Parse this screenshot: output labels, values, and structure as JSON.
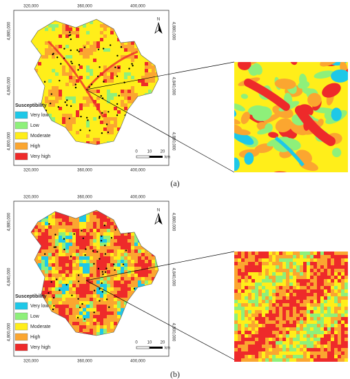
{
  "panels": [
    {
      "label": "(a)",
      "x_labels": [
        "320,000",
        "360,000",
        "400,000"
      ],
      "y_labels": [
        "4,880,000",
        "4,840,000",
        "4,800,000"
      ],
      "legend": {
        "title": "Susceptibility",
        "items": [
          "Very low",
          "Low",
          "Moderate",
          "High",
          "Very high"
        ],
        "colors": [
          "#1ec8e8",
          "#8ef07a",
          "#ffee1a",
          "#fba630",
          "#ee2a2a"
        ]
      },
      "scale": [
        "0",
        "10",
        "20",
        "km"
      ],
      "north": "N"
    },
    {
      "label": "(b)",
      "x_labels": [
        "320,000",
        "360,000",
        "400,000"
      ],
      "y_labels": [
        "4,880,000",
        "4,840,000",
        "4,800,000"
      ],
      "legend": {
        "title": "Susceptibility",
        "items": [
          "Very low",
          "Low",
          "Moderate",
          "High",
          "Very high"
        ],
        "colors": [
          "#1ec8e8",
          "#8ef07a",
          "#ffee1a",
          "#fba630",
          "#ee2a2a"
        ]
      },
      "scale": [
        "0",
        "10",
        "20",
        "km"
      ],
      "north": "N"
    }
  ]
}
